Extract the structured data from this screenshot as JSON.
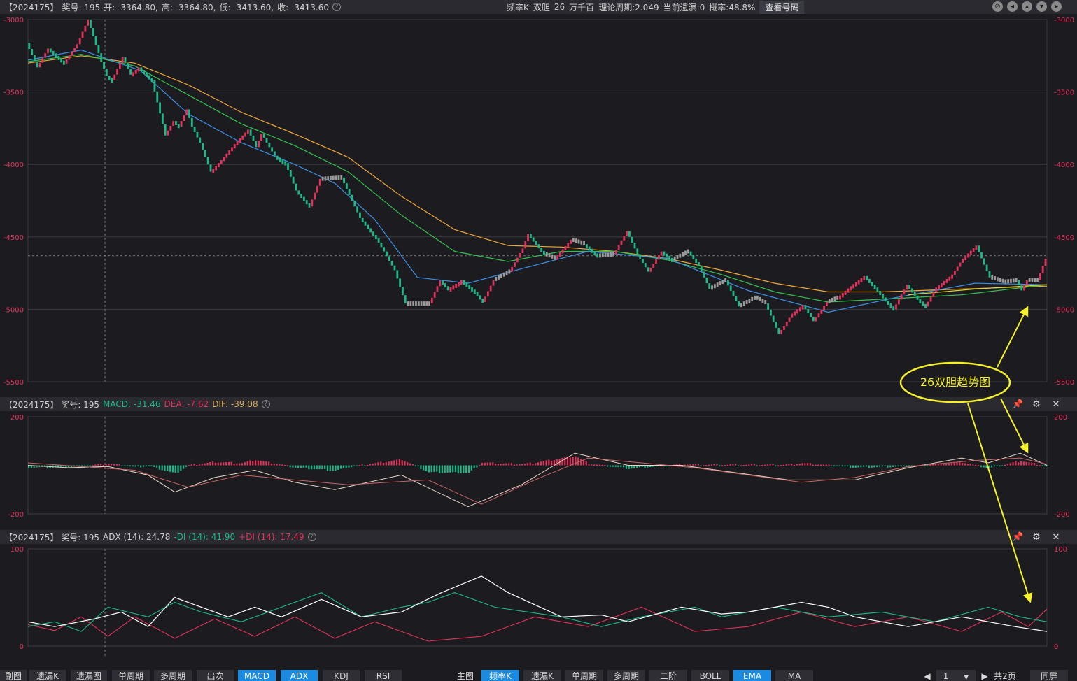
{
  "header": {
    "title": "【2024175】",
    "items": [
      "奖号: 195",
      "开: -3364.80,",
      "高: -3364.80,",
      "低: -3413.60,",
      "收: -3413.60"
    ],
    "right": [
      "频率K",
      "双胆",
      "26",
      "万千百",
      "理论周期:2.049",
      "当前遗漏:0",
      "概率:48.8%"
    ],
    "check_button": "查看号码"
  },
  "macd_header": {
    "title": "【2024175】 奖号: 195",
    "macd": "MACD: -31.46",
    "dea": "DEA: -7.62",
    "dif": "DIF: -39.08"
  },
  "adx_header": {
    "title": "【2024175】 奖号: 195",
    "adx": "ADX (14): 24.78",
    "mdi": "-DI (14): 41.90",
    "pdi": "+DI (14): 17.49"
  },
  "colors": {
    "up": "#e0325a",
    "down": "#1db887",
    "ema_fast": "#3c8fe6",
    "ema_mid": "#33c24d",
    "ema_slow": "#f0a838",
    "ema_vslow": "#d8d838",
    "annotation": "#f5f02a"
  },
  "annotation": {
    "label": "26双胆趋势图"
  },
  "bottom_tabs": {
    "left": [
      "副图",
      "遗漏K",
      "遗漏图",
      "单周期",
      "多周期",
      "出次",
      "MACD",
      "ADX",
      "KDJ",
      "RSI"
    ],
    "left_active": [
      "MACD",
      "ADX"
    ],
    "right": [
      "主图",
      "频率K",
      "遗漏K",
      "单周期",
      "多周期",
      "二阶",
      "BOLL",
      "EMA",
      "MA"
    ],
    "right_active": [
      "频率K",
      "EMA"
    ],
    "page_value": "1",
    "page_total": "共2页",
    "fullscreen": "同屏"
  },
  "chart_data": [
    {
      "type": "candlestick",
      "y_ticks": [
        "-3000",
        "-3500",
        "-4000",
        "-4500",
        "-5000",
        "-5500"
      ],
      "ylim": [
        -5500,
        -3000
      ],
      "reference_line": -4630,
      "path_points": [
        [
          0,
          -3160
        ],
        [
          4,
          -3330
        ],
        [
          8,
          -3200
        ],
        [
          14,
          -3300
        ],
        [
          19,
          -3170
        ],
        [
          23,
          -3000
        ],
        [
          28,
          -3290
        ],
        [
          30,
          -3390
        ],
        [
          32,
          -3420
        ],
        [
          36,
          -3260
        ],
        [
          39,
          -3380
        ],
        [
          42,
          -3330
        ],
        [
          47,
          -3420
        ],
        [
          52,
          -3800
        ],
        [
          55,
          -3700
        ],
        [
          57,
          -3740
        ],
        [
          60,
          -3620
        ],
        [
          62,
          -3740
        ],
        [
          65,
          -3850
        ],
        [
          69,
          -4050
        ],
        [
          73,
          -3970
        ],
        [
          77,
          -3880
        ],
        [
          83,
          -3760
        ],
        [
          86,
          -3880
        ],
        [
          88,
          -3790
        ],
        [
          93,
          -3940
        ],
        [
          97,
          -3990
        ],
        [
          101,
          -4180
        ],
        [
          106,
          -4290
        ],
        [
          110,
          -4100
        ],
        [
          118,
          -4090
        ],
        [
          121,
          -4210
        ],
        [
          125,
          -4370
        ],
        [
          131,
          -4510
        ],
        [
          134,
          -4600
        ],
        [
          138,
          -4730
        ],
        [
          142,
          -4960
        ],
        [
          151,
          -4960
        ],
        [
          155,
          -4800
        ],
        [
          158,
          -4860
        ],
        [
          163,
          -4800
        ],
        [
          168,
          -4880
        ],
        [
          171,
          -4950
        ],
        [
          175,
          -4800
        ],
        [
          181,
          -4740
        ],
        [
          186,
          -4580
        ],
        [
          188,
          -4480
        ],
        [
          194,
          -4620
        ],
        [
          198,
          -4650
        ],
        [
          204,
          -4520
        ],
        [
          209,
          -4550
        ],
        [
          214,
          -4630
        ],
        [
          220,
          -4620
        ],
        [
          225,
          -4460
        ],
        [
          229,
          -4620
        ],
        [
          233,
          -4740
        ],
        [
          238,
          -4600
        ],
        [
          242,
          -4660
        ],
        [
          248,
          -4600
        ],
        [
          252,
          -4700
        ],
        [
          256,
          -4860
        ],
        [
          262,
          -4800
        ],
        [
          267,
          -4980
        ],
        [
          273,
          -4920
        ],
        [
          277,
          -4960
        ],
        [
          282,
          -5170
        ],
        [
          287,
          -5030
        ],
        [
          291,
          -4970
        ],
        [
          295,
          -5080
        ],
        [
          300,
          -4950
        ],
        [
          304,
          -4920
        ],
        [
          309,
          -4840
        ],
        [
          314,
          -4770
        ],
        [
          318,
          -4850
        ],
        [
          322,
          -4940
        ],
        [
          325,
          -5000
        ],
        [
          330,
          -4830
        ],
        [
          334,
          -4930
        ],
        [
          337,
          -4980
        ],
        [
          341,
          -4850
        ],
        [
          347,
          -4760
        ],
        [
          351,
          -4650
        ],
        [
          356,
          -4560
        ],
        [
          361,
          -4780
        ],
        [
          366,
          -4810
        ],
        [
          371,
          -4800
        ],
        [
          373,
          -4870
        ],
        [
          375,
          -4800
        ],
        [
          379,
          -4800
        ],
        [
          382,
          -4650
        ]
      ],
      "ema_fast": [
        [
          0,
          -3280
        ],
        [
          20,
          -3210
        ],
        [
          42,
          -3350
        ],
        [
          60,
          -3650
        ],
        [
          80,
          -3850
        ],
        [
          100,
          -4000
        ],
        [
          115,
          -4130
        ],
        [
          130,
          -4380
        ],
        [
          146,
          -4780
        ],
        [
          165,
          -4820
        ],
        [
          185,
          -4720
        ],
        [
          210,
          -4600
        ],
        [
          240,
          -4650
        ],
        [
          270,
          -4870
        ],
        [
          300,
          -5020
        ],
        [
          325,
          -4920
        ],
        [
          355,
          -4820
        ],
        [
          382,
          -4830
        ]
      ],
      "ema_mid": [
        [
          0,
          -3290
        ],
        [
          20,
          -3240
        ],
        [
          40,
          -3320
        ],
        [
          60,
          -3520
        ],
        [
          80,
          -3720
        ],
        [
          100,
          -3870
        ],
        [
          120,
          -4050
        ],
        [
          140,
          -4350
        ],
        [
          160,
          -4600
        ],
        [
          180,
          -4670
        ],
        [
          200,
          -4600
        ],
        [
          220,
          -4600
        ],
        [
          240,
          -4660
        ],
        [
          260,
          -4760
        ],
        [
          280,
          -4880
        ],
        [
          300,
          -4950
        ],
        [
          320,
          -4930
        ],
        [
          350,
          -4900
        ],
        [
          382,
          -4830
        ]
      ],
      "ema_slow": [
        [
          0,
          -3300
        ],
        [
          20,
          -3250
        ],
        [
          40,
          -3300
        ],
        [
          60,
          -3450
        ],
        [
          80,
          -3640
        ],
        [
          100,
          -3790
        ],
        [
          120,
          -3950
        ],
        [
          140,
          -4220
        ],
        [
          160,
          -4450
        ],
        [
          180,
          -4560
        ],
        [
          200,
          -4570
        ],
        [
          220,
          -4600
        ],
        [
          240,
          -4650
        ],
        [
          260,
          -4730
        ],
        [
          280,
          -4820
        ],
        [
          300,
          -4880
        ],
        [
          320,
          -4880
        ],
        [
          350,
          -4860
        ],
        [
          382,
          -4840
        ]
      ],
      "ema_vslow": [
        [
          330,
          -4900
        ],
        [
          355,
          -4860
        ],
        [
          382,
          -4830
        ]
      ]
    },
    {
      "type": "histogram",
      "name": "MACD",
      "y_ticks": [
        "200",
        "-200"
      ],
      "ylim": [
        -200,
        200
      ],
      "dif": [
        [
          0,
          0
        ],
        [
          15,
          -10
        ],
        [
          30,
          -5
        ],
        [
          45,
          -40
        ],
        [
          55,
          -110
        ],
        [
          70,
          -50
        ],
        [
          85,
          -20
        ],
        [
          100,
          -70
        ],
        [
          115,
          -100
        ],
        [
          140,
          -40
        ],
        [
          165,
          -170
        ],
        [
          185,
          -80
        ],
        [
          205,
          50
        ],
        [
          225,
          0
        ],
        [
          245,
          0
        ],
        [
          265,
          -30
        ],
        [
          285,
          -60
        ],
        [
          310,
          -60
        ],
        [
          330,
          -10
        ],
        [
          350,
          30
        ],
        [
          360,
          10
        ],
        [
          372,
          50
        ],
        [
          382,
          0
        ]
      ],
      "dea": [
        [
          0,
          10
        ],
        [
          20,
          -5
        ],
        [
          40,
          -20
        ],
        [
          60,
          -90
        ],
        [
          80,
          -40
        ],
        [
          100,
          -60
        ],
        [
          120,
          -80
        ],
        [
          150,
          -60
        ],
        [
          170,
          -160
        ],
        [
          190,
          -60
        ],
        [
          210,
          30
        ],
        [
          230,
          10
        ],
        [
          250,
          -10
        ],
        [
          270,
          -40
        ],
        [
          290,
          -70
        ],
        [
          310,
          -50
        ],
        [
          330,
          -5
        ],
        [
          355,
          20
        ],
        [
          372,
          30
        ],
        [
          382,
          5
        ]
      ]
    },
    {
      "type": "line",
      "name": "ADX",
      "y_ticks": [
        "100",
        "0"
      ],
      "ylim": [
        0,
        100
      ],
      "adx": [
        [
          0,
          25
        ],
        [
          10,
          20
        ],
        [
          25,
          28
        ],
        [
          35,
          35
        ],
        [
          45,
          20
        ],
        [
          55,
          50
        ],
        [
          65,
          40
        ],
        [
          75,
          30
        ],
        [
          85,
          40
        ],
        [
          95,
          30
        ],
        [
          110,
          48
        ],
        [
          125,
          30
        ],
        [
          140,
          35
        ],
        [
          155,
          55
        ],
        [
          170,
          72
        ],
        [
          180,
          55
        ],
        [
          200,
          30
        ],
        [
          215,
          32
        ],
        [
          225,
          25
        ],
        [
          245,
          40
        ],
        [
          260,
          33
        ],
        [
          270,
          35
        ],
        [
          290,
          45
        ],
        [
          300,
          40
        ],
        [
          310,
          30
        ],
        [
          330,
          20
        ],
        [
          350,
          30
        ],
        [
          370,
          20
        ],
        [
          382,
          15
        ]
      ],
      "mdi": [
        [
          0,
          20
        ],
        [
          10,
          25
        ],
        [
          20,
          15
        ],
        [
          30,
          40
        ],
        [
          45,
          30
        ],
        [
          55,
          45
        ],
        [
          65,
          35
        ],
        [
          80,
          25
        ],
        [
          95,
          40
        ],
        [
          110,
          55
        ],
        [
          125,
          30
        ],
        [
          140,
          40
        ],
        [
          150,
          45
        ],
        [
          160,
          55
        ],
        [
          175,
          40
        ],
        [
          200,
          30
        ],
        [
          215,
          20
        ],
        [
          230,
          30
        ],
        [
          250,
          40
        ],
        [
          260,
          30
        ],
        [
          280,
          40
        ],
        [
          300,
          30
        ],
        [
          320,
          35
        ],
        [
          340,
          25
        ],
        [
          360,
          40
        ],
        [
          372,
          30
        ],
        [
          382,
          25
        ]
      ],
      "pdi": [
        [
          0,
          22
        ],
        [
          10,
          16
        ],
        [
          20,
          30
        ],
        [
          30,
          10
        ],
        [
          40,
          30
        ],
        [
          55,
          8
        ],
        [
          70,
          28
        ],
        [
          85,
          10
        ],
        [
          100,
          30
        ],
        [
          115,
          8
        ],
        [
          130,
          25
        ],
        [
          150,
          5
        ],
        [
          170,
          10
        ],
        [
          190,
          30
        ],
        [
          210,
          20
        ],
        [
          230,
          40
        ],
        [
          250,
          15
        ],
        [
          270,
          20
        ],
        [
          290,
          35
        ],
        [
          310,
          20
        ],
        [
          330,
          30
        ],
        [
          350,
          15
        ],
        [
          365,
          35
        ],
        [
          375,
          20
        ],
        [
          382,
          38
        ]
      ]
    }
  ]
}
